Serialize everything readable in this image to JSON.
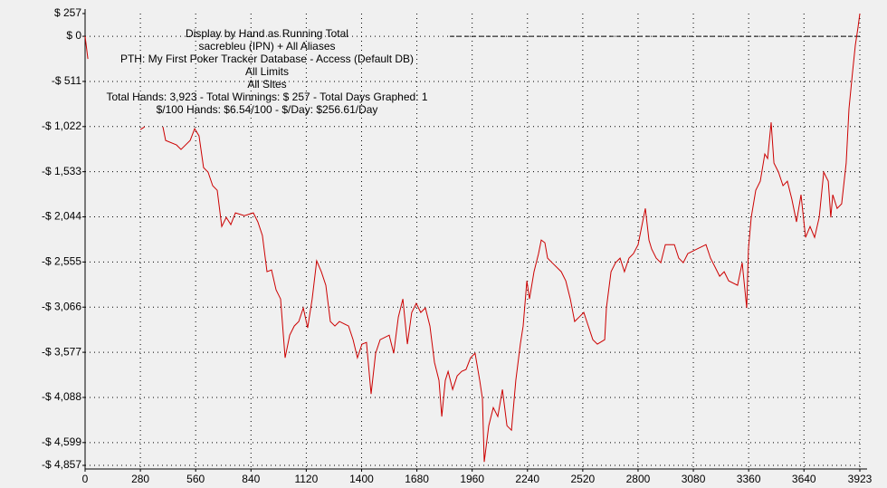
{
  "chart_data": {
    "type": "line",
    "title": "Display by Hand as Running Total",
    "subtitle_lines": [
      "sacrebleu (IPN) + All Aliases",
      "PTH: My First Poker Tracker Database - Access (Default DB)",
      "All Limits",
      "All Sites",
      "Total Hands: 3,923 - Total Winnings: $ 257 - Total Days Graphed: 1",
      "$/100 Hands: $6.54/100 - $/Day: $256.61/Day"
    ],
    "x": [
      0,
      14,
      73,
      280,
      302,
      348,
      394,
      408,
      463,
      486,
      532,
      555,
      577,
      600,
      623,
      646,
      669,
      692,
      715,
      738,
      761,
      807,
      852,
      875,
      898,
      921,
      944,
      967,
      990,
      1013,
      1036,
      1059,
      1082,
      1105,
      1127,
      1150,
      1173,
      1196,
      1219,
      1242,
      1265,
      1288,
      1334,
      1357,
      1379,
      1402,
      1425,
      1448,
      1471,
      1494,
      1540,
      1563,
      1586,
      1609,
      1632,
      1654,
      1677,
      1700,
      1723,
      1746,
      1769,
      1792,
      1806,
      1824,
      1838,
      1861,
      1884,
      1907,
      1929,
      1952,
      1975,
      1998,
      2012,
      2021,
      2044,
      2067,
      2090,
      2113,
      2136,
      2159,
      2181,
      2204,
      2218,
      2237,
      2250,
      2273,
      2296,
      2310,
      2328,
      2342,
      2365,
      2411,
      2434,
      2457,
      2479,
      2502,
      2525,
      2548,
      2571,
      2594,
      2631,
      2640,
      2663,
      2686,
      2709,
      2731,
      2754,
      2777,
      2800,
      2823,
      2837,
      2855,
      2869,
      2892,
      2915,
      2938,
      2984,
      3006,
      3029,
      3052,
      3098,
      3144,
      3167,
      3190,
      3213,
      3236,
      3259,
      3304,
      3327,
      3350,
      3359,
      3373,
      3396,
      3419,
      3442,
      3456,
      3474,
      3488,
      3511,
      3534,
      3556,
      3579,
      3602,
      3625,
      3648,
      3671,
      3694,
      3717,
      3740,
      3763,
      3776,
      3786,
      3808,
      3831,
      3854,
      3868,
      3886,
      3900,
      3914,
      3923
    ],
    "series": [
      {
        "name": "Running Total",
        "color": "#cc0000",
        "values": [
          0,
          -256,
          null,
          -1056,
          -1025,
          null,
          -1025,
          -1179,
          -1230,
          -1281,
          -1179,
          -1046,
          -1128,
          -1486,
          -1538,
          -1691,
          -1743,
          -2153,
          -2050,
          -2132,
          -1999,
          -2030,
          -1999,
          -2101,
          -2255,
          -2665,
          -2645,
          -2870,
          -2973,
          -3639,
          -3383,
          -3280,
          -3229,
          -3075,
          -3301,
          -2973,
          -2542,
          -2665,
          -2819,
          -3229,
          -3280,
          -3229,
          -3280,
          -3434,
          -3639,
          -3485,
          -3465,
          -4049,
          -3588,
          -3434,
          -3383,
          -3588,
          -3178,
          -2973,
          -3485,
          -3126,
          -3024,
          -3126,
          -3075,
          -3280,
          -3690,
          -3895,
          -4305,
          -3895,
          -3793,
          -3998,
          -3844,
          -3793,
          -3772,
          -3639,
          -3588,
          -3895,
          -4100,
          -4818,
          -4408,
          -4203,
          -4305,
          -3998,
          -4408,
          -4459,
          -3895,
          -3485,
          -3280,
          -2768,
          -2973,
          -2665,
          -2460,
          -2306,
          -2337,
          -2511,
          -2563,
          -2665,
          -2768,
          -2973,
          -3229,
          -3178,
          -3126,
          -3280,
          -3434,
          -3485,
          -3434,
          -3075,
          -2665,
          -2563,
          -2511,
          -2665,
          -2511,
          -2460,
          -2358,
          -2101,
          -1948,
          -2306,
          -2409,
          -2511,
          -2563,
          -2358,
          -2358,
          -2511,
          -2563,
          -2460,
          -2409,
          -2358,
          -2511,
          -2614,
          -2716,
          -2665,
          -2768,
          -2819,
          -2563,
          -3075,
          -2409,
          -2050,
          -1743,
          -1640,
          -1333,
          -1384,
          -974,
          -1435,
          -1538,
          -1691,
          -1640,
          -1845,
          -2101,
          -1794,
          -2276,
          -2153,
          -2276,
          -2050,
          -1538,
          -1640,
          -2050,
          -1794,
          -1948,
          -1896,
          -1435,
          -820,
          -410,
          -103,
          103,
          257
        ]
      }
    ],
    "xlim": [
      0,
      3923
    ],
    "xticks": [
      0,
      280,
      560,
      840,
      1120,
      1400,
      1680,
      1960,
      2240,
      2520,
      2800,
      3080,
      3360,
      3640,
      3923
    ],
    "ylim": [
      -4857,
      257
    ],
    "yticks": [
      {
        "value": 257,
        "label": "$ 257"
      },
      {
        "value": 0,
        "label": "$ 0"
      },
      {
        "value": -511,
        "label": "-$ 511"
      },
      {
        "value": -1022,
        "label": "-$ 1,022"
      },
      {
        "value": -1533,
        "label": "-$ 1,533"
      },
      {
        "value": -2044,
        "label": "-$ 2,044"
      },
      {
        "value": -2555,
        "label": "-$ 2,555"
      },
      {
        "value": -3066,
        "label": "-$ 3,066"
      },
      {
        "value": -3577,
        "label": "-$ 3,577"
      },
      {
        "value": -4088,
        "label": "-$ 4,088"
      },
      {
        "value": -4599,
        "label": "-$ 4,599"
      },
      {
        "value": -4857,
        "label": "-$ 4,857"
      }
    ],
    "grid": true
  }
}
